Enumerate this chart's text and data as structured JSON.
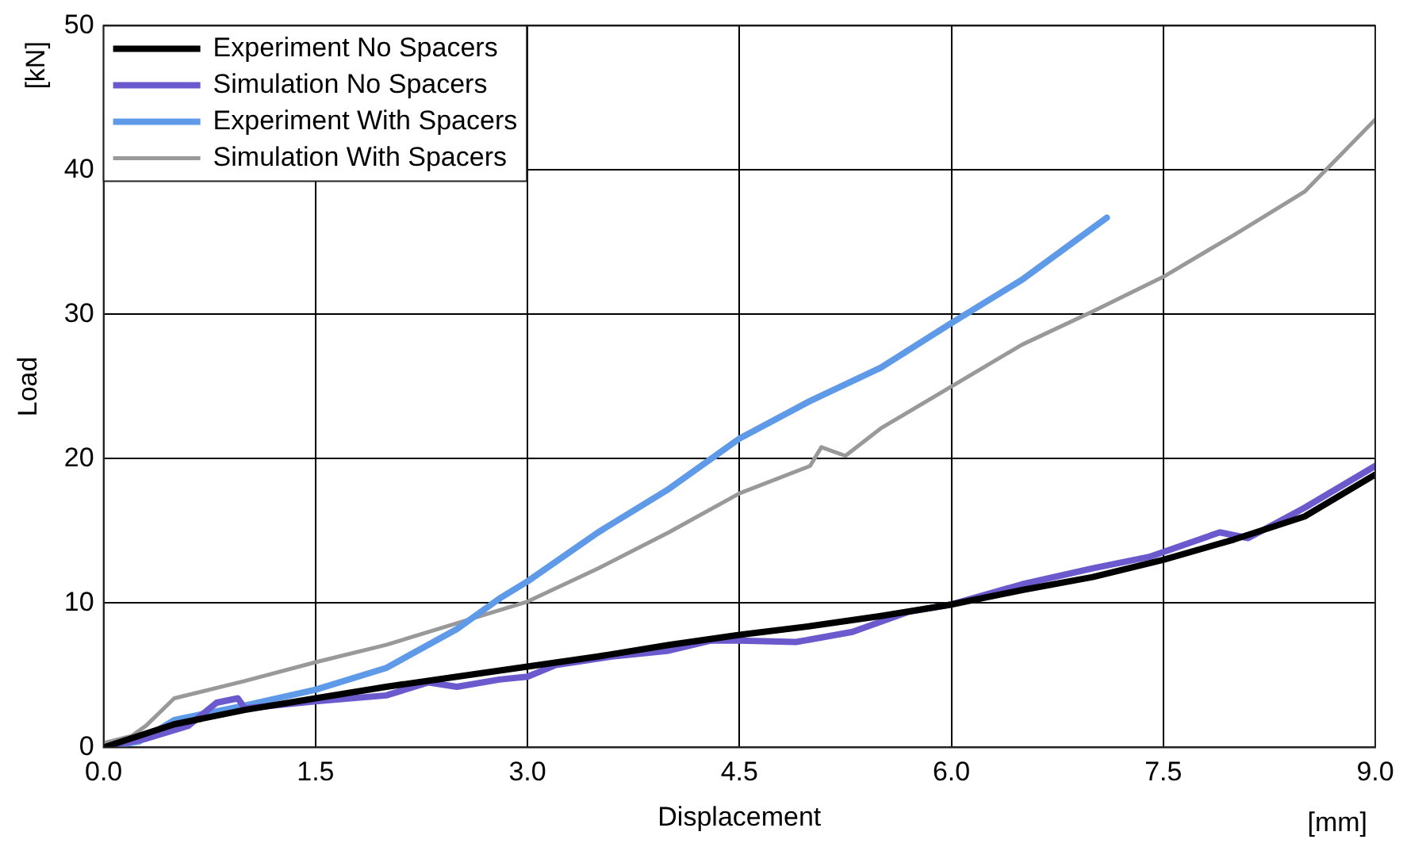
{
  "chart_data": {
    "type": "line",
    "xlabel": "Displacement",
    "ylabel": "Load",
    "annotations": [
      "[kN]",
      "[mm]"
    ],
    "xlim": [
      0,
      9
    ],
    "ylim": [
      0,
      50
    ],
    "xticks": [
      {
        "value": 0,
        "label": "0.0"
      },
      {
        "value": 1.5,
        "label": "1.5"
      },
      {
        "value": 3,
        "label": "3.0"
      },
      {
        "value": 4.5,
        "label": "4.5"
      },
      {
        "value": 6,
        "label": "6.0"
      },
      {
        "value": 7.5,
        "label": "7.5"
      },
      {
        "value": 9,
        "label": "9.0"
      }
    ],
    "yticks": [
      0,
      10,
      20,
      30,
      40,
      50
    ],
    "grid": true,
    "legend": "top left",
    "marker": "none",
    "line_style": "solid",
    "series": [
      {
        "name": "Experiment No Spacers",
        "color": "#000000",
        "x": [
          0,
          0.5,
          1.0,
          1.5,
          2.0,
          2.5,
          3.0,
          3.5,
          4.0,
          4.5,
          5.0,
          5.5,
          6.0,
          6.5,
          7.0,
          7.5,
          8.0,
          8.5,
          9.0
        ],
        "values": [
          0,
          1.6,
          2.6,
          3.4,
          4.2,
          4.9,
          5.6,
          6.3,
          7.1,
          7.8,
          8.4,
          9.1,
          9.9,
          10.9,
          11.8,
          13.0,
          14.4,
          16.0,
          18.9
        ]
      },
      {
        "name": "Simulation No Spacers",
        "color": "#6a5acd",
        "x": [
          0,
          0.3,
          0.6,
          0.8,
          0.95,
          1.0,
          1.5,
          2.0,
          2.3,
          2.5,
          2.8,
          3.0,
          3.2,
          3.6,
          4.0,
          4.3,
          4.5,
          4.9,
          5.3,
          5.7,
          6.0,
          6.5,
          7.0,
          7.4,
          7.9,
          8.1,
          8.5,
          9.0
        ],
        "values": [
          0,
          0.6,
          1.5,
          3.1,
          3.4,
          2.7,
          3.2,
          3.6,
          4.5,
          4.2,
          4.7,
          4.9,
          5.7,
          6.3,
          6.7,
          7.4,
          7.4,
          7.3,
          8.0,
          9.4,
          9.9,
          11.3,
          12.4,
          13.2,
          14.9,
          14.5,
          16.6,
          19.5
        ]
      },
      {
        "name": "Experiment With Spacers",
        "color": "#5f9ae8",
        "x": [
          0,
          0.25,
          0.5,
          1.0,
          1.5,
          2.0,
          2.5,
          2.8,
          3.0,
          3.5,
          4.0,
          4.5,
          5.0,
          5.5,
          6.0,
          6.5,
          7.1
        ],
        "values": [
          0,
          0.4,
          1.9,
          2.9,
          4.0,
          5.5,
          8.2,
          10.3,
          11.5,
          14.9,
          17.9,
          21.4,
          24.0,
          26.3,
          29.4,
          32.4,
          36.7
        ]
      },
      {
        "name": "Simulation With Spacers",
        "color": "#999999",
        "x": [
          0,
          0.2,
          0.3,
          0.5,
          1.0,
          1.5,
          2.0,
          2.5,
          3.0,
          3.5,
          4.0,
          4.5,
          5.0,
          5.08,
          5.25,
          5.5,
          6.0,
          6.5,
          7.0,
          7.5,
          8.0,
          8.5,
          9.0
        ],
        "values": [
          0.3,
          0.8,
          1.5,
          3.4,
          4.6,
          5.9,
          7.1,
          8.6,
          10.1,
          12.4,
          14.9,
          17.6,
          19.5,
          20.8,
          20.2,
          22.1,
          25.0,
          27.9,
          30.2,
          32.6,
          35.5,
          38.5,
          43.5
        ]
      }
    ]
  }
}
